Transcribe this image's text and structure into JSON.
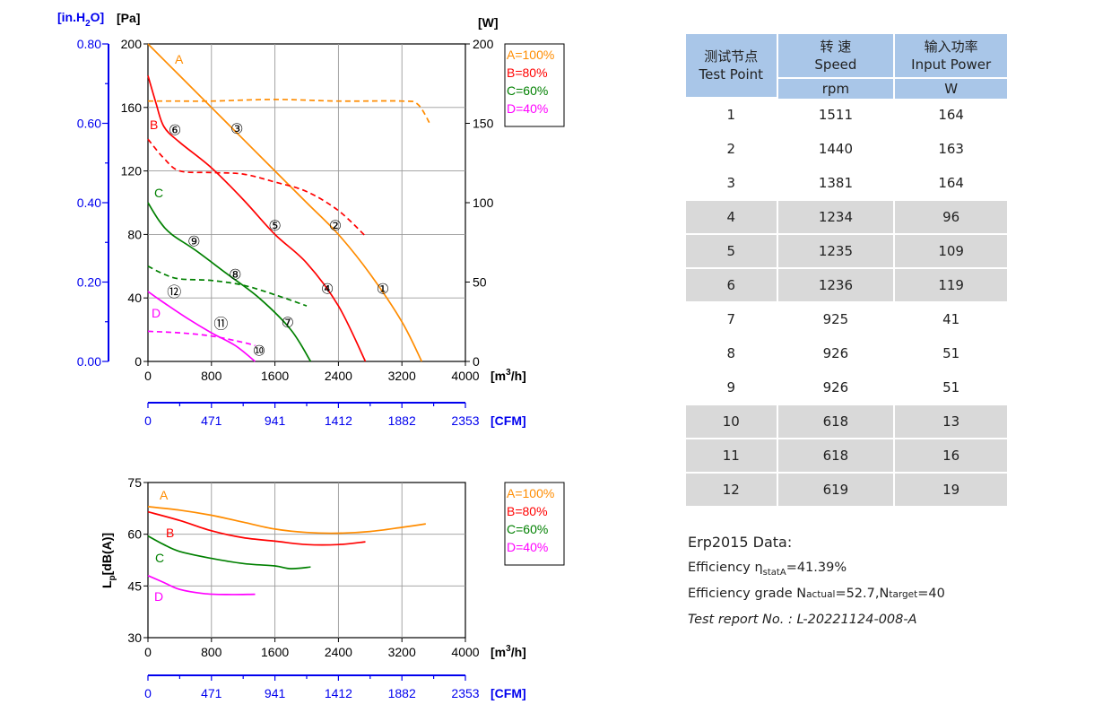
{
  "chart_data": [
    {
      "type": "line",
      "title": "",
      "y_left_inner_label": "[Pa]",
      "y_left_outer_label": "[in.H",
      "y_left_outer_label_sub": "2",
      "y_left_outer_label_end": "O]",
      "y_right_label": "[W]",
      "x_label": "[m",
      "x_label_sup": "3",
      "x_label_end": "/h]",
      "x2_label": "[CFM]",
      "xlim": [
        0,
        4000
      ],
      "ylim": [
        0,
        200
      ],
      "y_right_lim": [
        0,
        200
      ],
      "x_ticks": [
        "0",
        "800",
        "1600",
        "2400",
        "3200",
        "4000"
      ],
      "x2_ticks": [
        "0",
        "471",
        "941",
        "1412",
        "1882",
        "2353"
      ],
      "y_ticks": [
        "0",
        "40",
        "80",
        "120",
        "160",
        "200"
      ],
      "y_outer_ticks": [
        "0.00",
        "0.20",
        "0.40",
        "0.60",
        "0.80"
      ],
      "y_right_ticks": [
        "0",
        "50",
        "100",
        "150",
        "200"
      ],
      "grid": true,
      "legend_position": "top-right",
      "legend": [
        "A=100%",
        "B=80%",
        "C=60%",
        "D=40%"
      ],
      "curve_letters": [
        "A",
        "B",
        "C",
        "D"
      ],
      "series": [
        {
          "name": "A=100%",
          "color": "#ff8c00",
          "kind": "pressure",
          "x": [
            0,
            400,
            800,
            1200,
            1600,
            2000,
            2400,
            2800,
            3200,
            3450
          ],
          "y": [
            200,
            180,
            160,
            140,
            120,
            100,
            80,
            55,
            25,
            0
          ]
        },
        {
          "name": "B=80%",
          "color": "#ff0000",
          "kind": "pressure",
          "x": [
            0,
            100,
            200,
            400,
            800,
            1200,
            1600,
            2000,
            2400,
            2740
          ],
          "y": [
            180,
            163,
            148,
            138,
            122,
            102,
            80,
            62,
            35,
            0
          ]
        },
        {
          "name": "C=60%",
          "color": "#008000",
          "kind": "pressure",
          "x": [
            0,
            150,
            300,
            600,
            1000,
            1400,
            1800,
            2050
          ],
          "y": [
            100,
            88,
            80,
            70,
            55,
            40,
            20,
            0
          ]
        },
        {
          "name": "D=40%",
          "color": "#ff00ff",
          "kind": "pressure",
          "x": [
            0,
            200,
            500,
            800,
            1100,
            1350
          ],
          "y": [
            44,
            37,
            27,
            18,
            10,
            0
          ]
        },
        {
          "name": "A=100%",
          "color": "#ff8c00",
          "kind": "power",
          "x": [
            0,
            400,
            800,
            1600,
            2400,
            3200,
            3400,
            3550
          ],
          "y": [
            164,
            164,
            164,
            165,
            164,
            164,
            162,
            150
          ]
        },
        {
          "name": "B=80%",
          "color": "#ff0000",
          "kind": "power",
          "x": [
            0,
            200,
            400,
            800,
            1200,
            1600,
            2000,
            2400,
            2740
          ],
          "y": [
            140,
            128,
            120,
            119,
            118,
            113,
            107,
            95,
            79
          ]
        },
        {
          "name": "C=60%",
          "color": "#008000",
          "kind": "power",
          "x": [
            0,
            200,
            400,
            800,
            1200,
            1600,
            2000
          ],
          "y": [
            60,
            55,
            52,
            51,
            48,
            42,
            35
          ]
        },
        {
          "name": "D=40%",
          "color": "#ff00ff",
          "kind": "power",
          "x": [
            0,
            400,
            800,
            1200,
            1350
          ],
          "y": [
            19,
            18,
            16,
            12,
            10
          ]
        }
      ],
      "test_points": [
        {
          "label": "①",
          "x": 2960,
          "y": 46
        },
        {
          "label": "②",
          "x": 2360,
          "y": 86
        },
        {
          "label": "③",
          "x": 1120,
          "y": 147
        },
        {
          "label": "④",
          "x": 2260,
          "y": 46
        },
        {
          "label": "⑤",
          "x": 1600,
          "y": 86
        },
        {
          "label": "⑥",
          "x": 340,
          "y": 146
        },
        {
          "label": "⑦",
          "x": 1760,
          "y": 25
        },
        {
          "label": "⑧",
          "x": 1100,
          "y": 55
        },
        {
          "label": "⑨",
          "x": 580,
          "y": 76
        },
        {
          "label": "⑩",
          "x": 1400,
          "y": 7
        },
        {
          "label": "⑪",
          "x": 920,
          "y": 24
        },
        {
          "label": "⑫",
          "x": 330,
          "y": 44
        }
      ]
    },
    {
      "type": "line",
      "title": "",
      "ylabel": "L",
      "ylabel_sub": "p",
      "ylabel_end": "[dB(A)]",
      "x_label": "[m",
      "x_label_sup": "3",
      "x_label_end": "/h]",
      "x2_label": "[CFM]",
      "xlim": [
        0,
        4000
      ],
      "ylim": [
        30,
        75
      ],
      "x_ticks": [
        "0",
        "800",
        "1600",
        "2400",
        "3200",
        "4000"
      ],
      "x2_ticks": [
        "0",
        "471",
        "941",
        "1412",
        "1882",
        "2353"
      ],
      "y_ticks": [
        "30",
        "45",
        "60",
        "75"
      ],
      "grid": true,
      "legend_position": "top-right",
      "legend": [
        "A=100%",
        "B=80%",
        "C=60%",
        "D=40%"
      ],
      "curve_letters": [
        "A",
        "B",
        "C",
        "D"
      ],
      "series": [
        {
          "name": "A=100%",
          "color": "#ff8c00",
          "x": [
            0,
            400,
            800,
            1200,
            1600,
            2000,
            2400,
            2800,
            3200,
            3500
          ],
          "y": [
            68,
            67,
            65.5,
            63.5,
            61.5,
            60.5,
            60.3,
            60.8,
            62,
            63
          ]
        },
        {
          "name": "B=80%",
          "color": "#ff0000",
          "x": [
            0,
            400,
            800,
            1200,
            1600,
            2000,
            2400,
            2740
          ],
          "y": [
            66.5,
            64,
            61,
            59,
            58,
            57,
            57,
            57.8
          ]
        },
        {
          "name": "C=60%",
          "color": "#008000",
          "x": [
            0,
            200,
            400,
            800,
            1200,
            1600,
            1800,
            2050
          ],
          "y": [
            59.5,
            57,
            55,
            53,
            51.5,
            50.8,
            50,
            50.5
          ]
        },
        {
          "name": "D=40%",
          "color": "#ff00ff",
          "x": [
            0,
            200,
            400,
            700,
            1000,
            1350
          ],
          "y": [
            48,
            46,
            44,
            42.8,
            42.5,
            42.6
          ]
        }
      ]
    }
  ],
  "table": {
    "headers": [
      {
        "zh": "测试节点",
        "en": "Test Point",
        "unit": ""
      },
      {
        "zh": "转 速",
        "en": "Speed",
        "unit": "rpm"
      },
      {
        "zh": "输入功率",
        "en": "Input Power",
        "unit": "W"
      }
    ],
    "rows": [
      [
        "1",
        "1511",
        "164"
      ],
      [
        "2",
        "1440",
        "163"
      ],
      [
        "3",
        "1381",
        "164"
      ],
      [
        "4",
        "1234",
        "96"
      ],
      [
        "5",
        "1235",
        "109"
      ],
      [
        "6",
        "1236",
        "119"
      ],
      [
        "7",
        "925",
        "41"
      ],
      [
        "8",
        "926",
        "51"
      ],
      [
        "9",
        "926",
        "51"
      ],
      [
        "10",
        "618",
        "13"
      ],
      [
        "11",
        "618",
        "16"
      ],
      [
        "12",
        "619",
        "19"
      ]
    ],
    "shade_rows": [
      false,
      false,
      false,
      true,
      true,
      true,
      false,
      false,
      false,
      true,
      true,
      true
    ]
  },
  "erp": {
    "title": "Erp2015  Data:",
    "eff_label": "Efficiency η",
    "eff_sub": "statA",
    "eff_value": "=41.39%",
    "grade_label": "Efficiency grade  N",
    "grade_actual_sub": "actual",
    "grade_actual_value": "=52.7,N",
    "grade_target_sub": "target",
    "grade_target_value": "=40",
    "report": "Test report No. : L-20221124-008-A"
  },
  "colors": {
    "axis_blue": "#0000ee",
    "header_blue": "#a9c6e8",
    "shade_gray": "#d9d9d9",
    "grid_gray": "#9a9a9a"
  }
}
